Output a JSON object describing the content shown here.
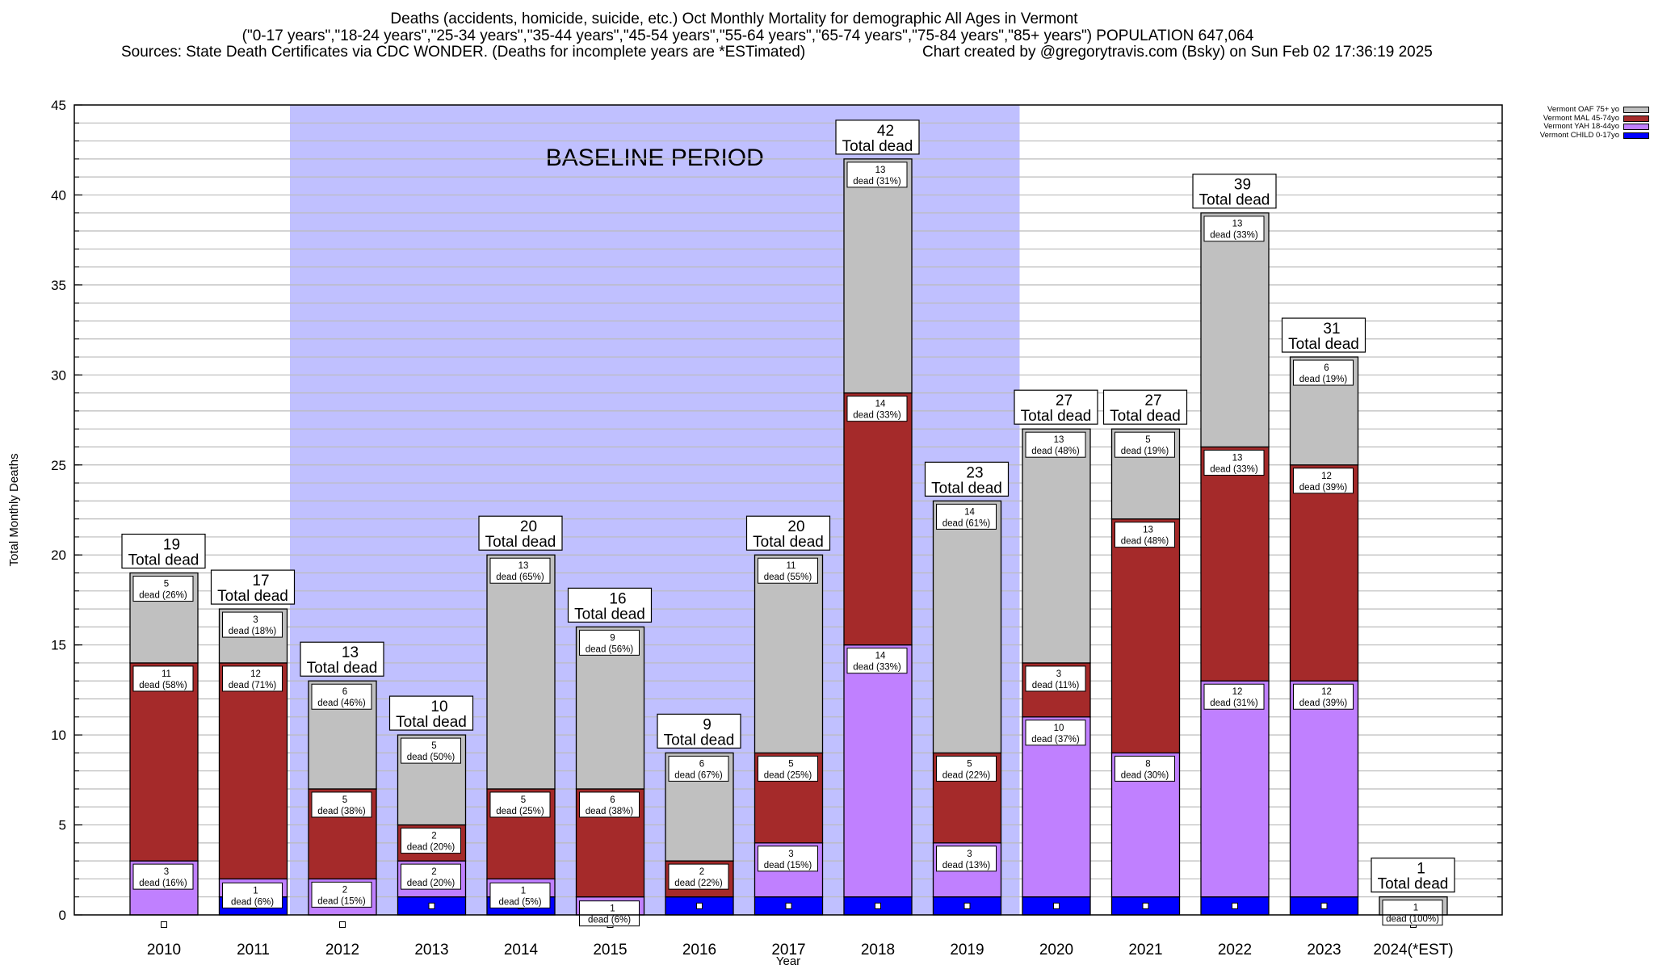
{
  "header": {
    "title": "Deaths (accidents, homicide, suicide, etc.) Oct Monthly Mortality for demographic All Ages in Vermont",
    "subtitle": "(\"0-17 years\",\"18-24 years\",\"25-34 years\",\"35-44 years\",\"45-54 years\",\"55-64 years\",\"65-74 years\",\"75-84 years\",\"85+ years\") POPULATION 647,064",
    "sources": "Sources: State Death Certificates via CDC WONDER. (Deaths for incomplete years are *ESTimated)",
    "credit": "Chart created by @gregorytravis.com (Bsky) on Sun Feb 02 17:36:19 2025"
  },
  "chart_data": {
    "type": "bar",
    "stacked": true,
    "title": "Deaths (accidents, homicide, suicide, etc.) Oct Monthly Mortality for demographic All Ages in Vermont",
    "xlabel": "Year",
    "ylabel": "Total Monthly Deaths",
    "ylim": [
      0,
      45
    ],
    "yticks": [
      0,
      5,
      10,
      15,
      20,
      25,
      30,
      35,
      40,
      45
    ],
    "grid": true,
    "legend_position": "top-right",
    "categories": [
      "2010",
      "2011",
      "2012",
      "2013",
      "2014",
      "2015",
      "2016",
      "2017",
      "2018",
      "2019",
      "2020",
      "2021",
      "2022",
      "2023",
      "2024(*EST)"
    ],
    "series": [
      {
        "name": "Vermont CHILD 0-17yo",
        "color": "#0000ff",
        "values": [
          0,
          1,
          0,
          1,
          1,
          0,
          1,
          1,
          1,
          1,
          1,
          1,
          1,
          1,
          0
        ]
      },
      {
        "name": "Vermont YAH 18-44yo",
        "color": "#c080ff",
        "values": [
          3,
          1,
          2,
          2,
          1,
          1,
          0,
          3,
          14,
          3,
          10,
          8,
          12,
          12,
          0
        ],
        "percents": [
          16,
          6,
          15,
          20,
          5,
          6,
          0,
          15,
          33,
          13,
          37,
          30,
          31,
          39,
          0
        ]
      },
      {
        "name": "Vermont MAL 45-74yo",
        "color": "#a52a2a",
        "values": [
          11,
          12,
          5,
          2,
          5,
          6,
          2,
          5,
          14,
          5,
          3,
          13,
          13,
          12,
          0
        ],
        "percents": [
          58,
          71,
          38,
          20,
          25,
          38,
          22,
          25,
          33,
          22,
          11,
          48,
          33,
          39,
          0
        ]
      },
      {
        "name": "Vermont OAF 75+ yo",
        "color": "#c0c0c0",
        "values": [
          5,
          3,
          6,
          5,
          13,
          9,
          6,
          11,
          13,
          14,
          13,
          5,
          13,
          6,
          1
        ],
        "percents": [
          26,
          18,
          46,
          50,
          65,
          56,
          67,
          55,
          31,
          61,
          48,
          19,
          33,
          19,
          100
        ]
      }
    ],
    "totals": [
      19,
      17,
      13,
      10,
      20,
      16,
      9,
      20,
      42,
      23,
      27,
      27,
      39,
      31,
      1
    ],
    "total_label_suffix": "Total dead",
    "segment_label_word": "dead",
    "annotations": [
      {
        "text": "BASELINE PERIOD",
        "x_start": "2012",
        "x_end": "2019",
        "color": "#c0c0ff"
      }
    ]
  }
}
